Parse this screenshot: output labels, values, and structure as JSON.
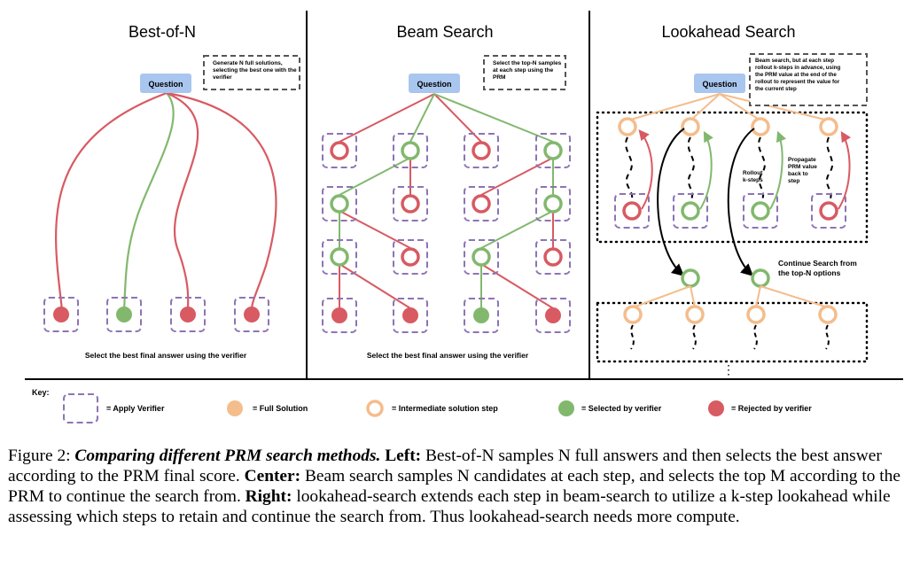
{
  "panels": {
    "best_of_n": {
      "title": "Best-of-N",
      "question_label": "Question",
      "note": [
        "Generate N full solutions,",
        "selecting the best one with the",
        "verifier"
      ],
      "footer": "Select the best final answer using the verifier"
    },
    "beam_search": {
      "title": "Beam Search",
      "question_label": "Question",
      "note": [
        "Select the top-N samples",
        "at each step using the",
        "PRM"
      ],
      "footer": "Select the best final answer using the verifier"
    },
    "lookahead": {
      "title": "Lookahead Search",
      "question_label": "Question",
      "note": [
        "Beam search, but at each step",
        "rollout k-steps in advance, using",
        "the PRM value at the end of the",
        "rollout to represent the value for",
        "the current step"
      ],
      "rollout_label": [
        "Rollout",
        "k-steps"
      ],
      "propagate_label": [
        "Propagate",
        "PRM value",
        "back to",
        "step"
      ],
      "continue_label": [
        "Continue Search from",
        "the top-N options"
      ],
      "ellipsis": "⋮"
    }
  },
  "key": {
    "title": "Key:",
    "items": [
      {
        "label": "= Apply Verifier"
      },
      {
        "label": "= Full Solution"
      },
      {
        "label": "= Intermediate solution step"
      },
      {
        "label": "= Selected by verifier"
      },
      {
        "label": "= Rejected by verifier"
      }
    ]
  },
  "colors": {
    "green": "#82b86e",
    "red": "#d85a62",
    "orange": "#f4bd8c",
    "purple": "#8d74b4",
    "question_fill": "#a9c6ee"
  },
  "caption": {
    "label": "Figure 2:",
    "title": "Comparing different PRM search methods.",
    "left_head": "Left:",
    "left_text": "Best-of-N samples N full answers and then selects the best answer according to the PRM final score.",
    "center_head": "Center:",
    "center_text": "Beam search samples N candidates at each step, and selects the top M according to the PRM to continue the search from.",
    "right_head": "Right:",
    "right_text": "lookahead-search extends each step in beam-search to utilize a k-step lookahead while assessing which steps to retain and continue the search from. Thus lookahead-search needs more compute."
  }
}
